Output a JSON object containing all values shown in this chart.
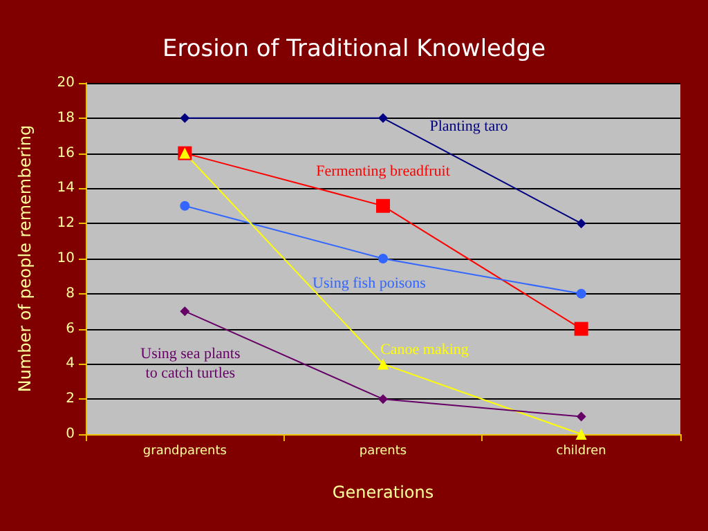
{
  "chart_data": {
    "type": "line",
    "title": "Erosion of Traditional Knowledge",
    "xlabel": "Generations",
    "ylabel": "Number of people remembering",
    "categories": [
      "grandparents",
      "parents",
      "children"
    ],
    "series": [
      {
        "name": "Planting taro",
        "color": "#000080",
        "marker": "diamond",
        "values": [
          18,
          18,
          12
        ]
      },
      {
        "name": "Fermenting breadfruit",
        "color": "#ff0000",
        "marker": "square",
        "values": [
          16,
          13,
          6
        ]
      },
      {
        "name": "Using fish poisons",
        "color": "#3366ff",
        "marker": "circle",
        "values": [
          13,
          10,
          8
        ]
      },
      {
        "name": "Canoe making",
        "color": "#ffff00",
        "marker": "triangle",
        "values": [
          16,
          4,
          0
        ]
      },
      {
        "name": "Using sea plants\nto catch turtles",
        "color": "#660066",
        "marker": "diamond",
        "values": [
          7,
          2,
          1
        ]
      }
    ],
    "ylim": [
      0,
      20
    ],
    "yticks": [
      0,
      2,
      4,
      6,
      8,
      10,
      12,
      14,
      16,
      18,
      20
    ],
    "grid": "y",
    "legend": false
  }
}
